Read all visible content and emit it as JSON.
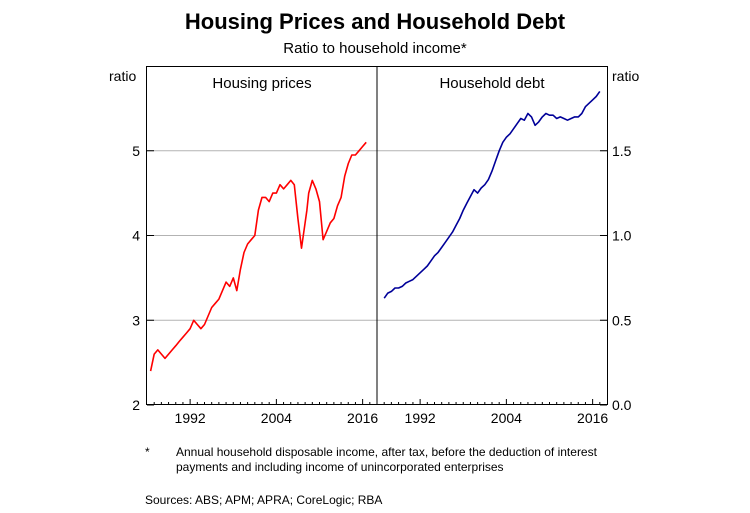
{
  "title": "Housing Prices and Household Debt",
  "subtitle": "Ratio to household income*",
  "footnote": {
    "marker": "*",
    "text": "Annual household disposable income, after tax, before the deduction of interest payments and including income of unincorporated enterprises"
  },
  "sources": "Sources:  ABS; APM; APRA; CoreLogic; RBA",
  "colors": {
    "housing": "#ff0000",
    "debt": "#000099",
    "grid": "#b3b3b3"
  },
  "chart_data": [
    {
      "type": "line",
      "panel_title": "Housing prices",
      "ylabel": "ratio",
      "yaxis_side": "left",
      "ylim": [
        2,
        6
      ],
      "yticks": [
        2,
        3,
        4,
        5
      ],
      "xlim": [
        1986,
        2018
      ],
      "xticks": [
        1992,
        2004,
        2016
      ],
      "series": [
        {
          "x": [
            1986.5,
            1987,
            1987.5,
            1988,
            1988.5,
            1989,
            1989.5,
            1990,
            1990.5,
            1991,
            1991.5,
            1992,
            1992.5,
            1993,
            1993.5,
            1994,
            1994.5,
            1995,
            1995.5,
            1996,
            1996.5,
            1997,
            1997.5,
            1998,
            1998.5,
            1999,
            1999.5,
            2000,
            2000.5,
            2001,
            2001.5,
            2002,
            2002.5,
            2003,
            2003.5,
            2004,
            2004.5,
            2005,
            2005.5,
            2006,
            2006.5,
            2007,
            2007.5,
            2008,
            2008.25,
            2008.5,
            2009,
            2009.5,
            2010,
            2010.5,
            2011,
            2011.5,
            2012,
            2012.5,
            2013,
            2013.5,
            2014,
            2014.5,
            2015,
            2015.5,
            2016,
            2016.5
          ],
          "values": [
            2.4,
            2.6,
            2.65,
            2.6,
            2.55,
            2.6,
            2.65,
            2.7,
            2.75,
            2.8,
            2.85,
            2.9,
            3.0,
            2.95,
            2.9,
            2.95,
            3.05,
            3.15,
            3.2,
            3.25,
            3.35,
            3.45,
            3.4,
            3.5,
            3.35,
            3.6,
            3.8,
            3.9,
            3.95,
            4.0,
            4.3,
            4.45,
            4.45,
            4.4,
            4.5,
            4.5,
            4.6,
            4.55,
            4.6,
            4.65,
            4.6,
            4.2,
            3.85,
            4.15,
            4.3,
            4.5,
            4.65,
            4.55,
            4.4,
            3.95,
            4.05,
            4.15,
            4.2,
            4.35,
            4.45,
            4.7,
            4.85,
            4.95,
            4.95,
            5.0,
            5.05,
            5.1
          ]
        }
      ]
    },
    {
      "type": "line",
      "panel_title": "Household debt",
      "ylabel": "ratio",
      "yaxis_side": "right",
      "ylim": [
        0,
        2
      ],
      "yticks": [
        "0.0",
        "0.5",
        "1.0",
        "1.5"
      ],
      "xlim": [
        1986,
        2018
      ],
      "xticks": [
        1992,
        2004,
        2016
      ],
      "series": [
        {
          "x": [
            1987,
            1987.5,
            1988,
            1988.5,
            1989,
            1989.5,
            1990,
            1990.5,
            1991,
            1991.5,
            1992,
            1992.5,
            1993,
            1993.5,
            1994,
            1994.5,
            1995,
            1995.5,
            1996,
            1996.5,
            1997,
            1997.5,
            1998,
            1998.5,
            1999,
            1999.5,
            2000,
            2000.5,
            2001,
            2001.5,
            2002,
            2002.5,
            2003,
            2003.5,
            2004,
            2004.5,
            2005,
            2005.5,
            2006,
            2006.5,
            2007,
            2007.5,
            2008,
            2008.5,
            2009,
            2009.5,
            2010,
            2010.5,
            2011,
            2011.5,
            2012,
            2012.5,
            2013,
            2013.5,
            2014,
            2014.5,
            2015,
            2015.5,
            2016,
            2016.5,
            2017
          ],
          "values": [
            0.63,
            0.66,
            0.67,
            0.69,
            0.69,
            0.7,
            0.72,
            0.73,
            0.74,
            0.76,
            0.78,
            0.8,
            0.82,
            0.85,
            0.88,
            0.9,
            0.93,
            0.96,
            0.99,
            1.02,
            1.06,
            1.1,
            1.15,
            1.19,
            1.23,
            1.27,
            1.25,
            1.28,
            1.3,
            1.33,
            1.38,
            1.44,
            1.5,
            1.55,
            1.58,
            1.6,
            1.63,
            1.66,
            1.69,
            1.68,
            1.72,
            1.7,
            1.65,
            1.67,
            1.7,
            1.72,
            1.71,
            1.71,
            1.69,
            1.7,
            1.69,
            1.68,
            1.69,
            1.7,
            1.7,
            1.72,
            1.76,
            1.78,
            1.8,
            1.82,
            1.85
          ]
        }
      ]
    }
  ]
}
